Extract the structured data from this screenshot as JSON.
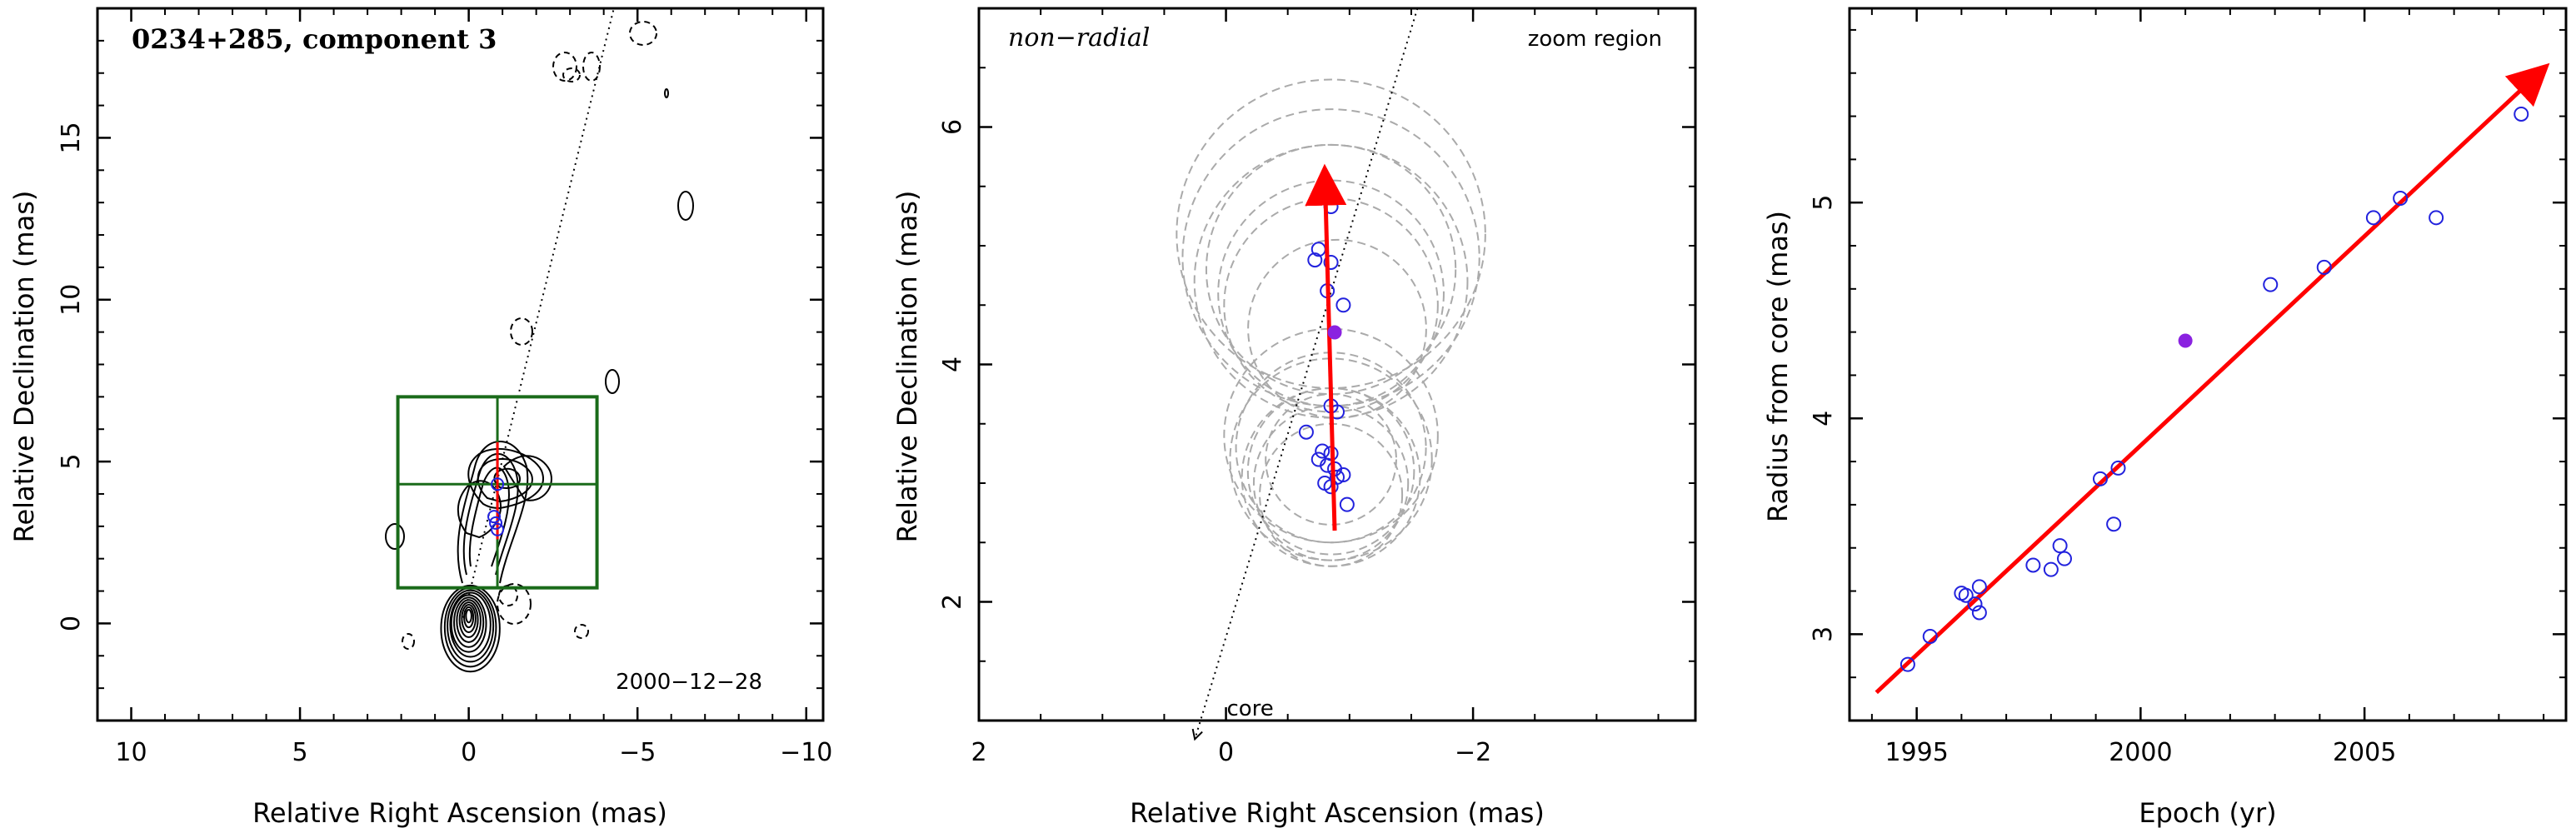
{
  "chart_data": [
    {
      "type": "contour",
      "title": "0234+285, component 3",
      "xlabel": "Relative Right Ascension (mas)",
      "ylabel": "Relative Declination (mas)",
      "xlim": [
        11,
        -10.5
      ],
      "ylim": [
        -3,
        19
      ],
      "xticks": [
        10,
        5,
        0,
        -5,
        -10
      ],
      "yticks": [
        0,
        5,
        10,
        15
      ],
      "epoch_label": "2000−12−28",
      "zoom_box": {
        "x": [
          -3.8,
          2.1
        ],
        "y": [
          1.1,
          7.0
        ]
      },
      "crosshair": {
        "x": -0.85,
        "y": 4.3
      },
      "component_positions": [
        [
          -0.85,
          4.3
        ],
        [
          -0.8,
          3.1
        ],
        [
          -0.85,
          2.9
        ],
        [
          -0.75,
          3.3
        ]
      ],
      "motion_vector": {
        "from": [
          -0.85,
          2.6
        ],
        "to": [
          -0.85,
          5.6
        ]
      },
      "jet_axis": {
        "from": [
          0.2,
          0
        ],
        "to": [
          -4.3,
          19
        ]
      },
      "colors": {
        "contour": "#000000",
        "box": "#1a6b1a",
        "vector": "#ff0000",
        "points": "#2222dd"
      }
    },
    {
      "type": "scatter",
      "xlabel": "Relative Right Ascension (mas)",
      "ylabel": "Relative Declination (mas)",
      "xlim": [
        2.0,
        -3.8
      ],
      "ylim": [
        1.0,
        7.0
      ],
      "xticks": [
        2,
        0,
        -2
      ],
      "yticks": [
        2,
        4,
        6
      ],
      "label_topleft": "non−radial",
      "label_topright": "zoom region",
      "core_label": "core",
      "points": [
        [
          -0.85,
          5.33
        ],
        [
          -0.75,
          4.97
        ],
        [
          -0.72,
          4.88
        ],
        [
          -0.85,
          4.86
        ],
        [
          -0.82,
          4.62
        ],
        [
          -0.95,
          4.5
        ],
        [
          -0.85,
          3.65
        ],
        [
          -0.9,
          3.6
        ],
        [
          -0.65,
          3.43
        ],
        [
          -0.78,
          3.27
        ],
        [
          -0.85,
          3.25
        ],
        [
          -0.75,
          3.2
        ],
        [
          -0.82,
          3.15
        ],
        [
          -0.88,
          3.12
        ],
        [
          -0.9,
          3.05
        ],
        [
          -0.95,
          3.07
        ],
        [
          -0.8,
          3.0
        ],
        [
          -0.85,
          2.97
        ],
        [
          -0.98,
          2.82
        ]
      ],
      "highlight_point": [
        -0.88,
        4.27
      ],
      "circles": [
        [
          -0.85,
          4.9,
          1.25
        ],
        [
          -0.85,
          4.7,
          1.15
        ],
        [
          -0.85,
          4.6,
          0.95
        ],
        [
          -0.85,
          4.8,
          1.05
        ],
        [
          -0.85,
          4.5,
          0.9
        ],
        [
          -0.85,
          5.1,
          1.3
        ],
        [
          -0.9,
          4.3,
          0.75
        ],
        [
          -0.85,
          3.2,
          0.85
        ],
        [
          -0.85,
          3.1,
          0.7
        ],
        [
          -0.85,
          3.3,
          0.8
        ],
        [
          -0.85,
          3.0,
          0.65
        ],
        [
          -0.85,
          3.4,
          0.9
        ],
        [
          -0.85,
          2.9,
          0.6
        ],
        [
          -0.85,
          3.2,
          0.55
        ],
        [
          -0.85,
          3.05,
          0.75
        ]
      ],
      "motion_vector": {
        "from": [
          -0.88,
          2.6
        ],
        "to": [
          -0.8,
          5.62
        ]
      },
      "jet_axis": {
        "from": [
          0.25,
          0.85
        ],
        "to": [
          -1.55,
          7.0
        ]
      },
      "colors": {
        "circles": "#aaaaaa",
        "points": "#2222dd",
        "highlight": "#8a22e0",
        "vector": "#ff0000"
      }
    },
    {
      "type": "scatter",
      "xlabel": "Epoch (yr)",
      "ylabel": "Radius from core (mas)",
      "xlim": [
        1993.5,
        2009.5
      ],
      "ylim": [
        2.6,
        5.9
      ],
      "xticks": [
        1995,
        2000,
        2005
      ],
      "yticks": [
        3,
        4,
        5
      ],
      "points": [
        [
          1994.8,
          2.86
        ],
        [
          1995.3,
          2.99
        ],
        [
          1996.0,
          3.19
        ],
        [
          1996.1,
          3.18
        ],
        [
          1996.3,
          3.14
        ],
        [
          1996.4,
          3.1
        ],
        [
          1996.4,
          3.22
        ],
        [
          1997.6,
          3.32
        ],
        [
          1998.0,
          3.3
        ],
        [
          1998.2,
          3.41
        ],
        [
          1998.3,
          3.35
        ],
        [
          1999.1,
          3.72
        ],
        [
          1999.4,
          3.51
        ],
        [
          1999.5,
          3.77
        ],
        [
          2002.9,
          4.62
        ],
        [
          2004.1,
          4.7
        ],
        [
          2005.2,
          4.93
        ],
        [
          2005.8,
          5.02
        ],
        [
          2006.6,
          4.93
        ],
        [
          2008.5,
          5.41
        ]
      ],
      "highlight_point": [
        2001.0,
        4.36
      ],
      "fit_line": {
        "from": [
          1994.1,
          2.73
        ],
        "to": [
          2009.0,
          5.62
        ]
      },
      "colors": {
        "points": "#2222dd",
        "highlight": "#8a22e0",
        "line": "#ff0000"
      }
    }
  ]
}
